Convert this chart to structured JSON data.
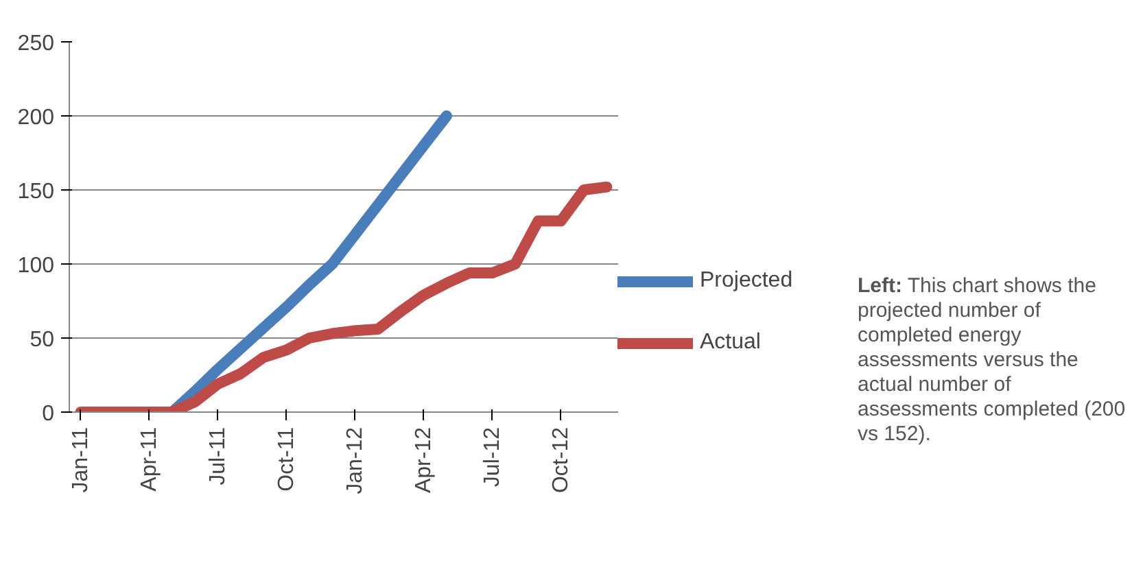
{
  "chart_data": {
    "type": "line",
    "categories": [
      "Jan-11",
      null,
      null,
      "Apr-11",
      null,
      null,
      "Jul-11",
      null,
      null,
      "Oct-11",
      null,
      null,
      "Jan-12",
      null,
      null,
      "Apr-12",
      null,
      null,
      "Jul-12",
      null,
      null,
      "Oct-12",
      null,
      null
    ],
    "series": [
      {
        "name": "Projected",
        "color": "#4a7ebb",
        "values": [
          null,
          null,
          null,
          null,
          0,
          14,
          29,
          43,
          57,
          71,
          86,
          100,
          120,
          140,
          160,
          180,
          200,
          null,
          null,
          null,
          null,
          null,
          null,
          null
        ]
      },
      {
        "name": "Actual",
        "color": "#be4b48",
        "values": [
          0,
          0,
          0,
          0,
          0,
          7,
          19,
          26,
          37,
          42,
          50,
          53,
          55,
          56,
          68,
          79,
          87,
          94,
          94,
          100,
          129,
          129,
          150,
          152
        ]
      }
    ],
    "ylim": [
      0,
      250
    ],
    "yticks": [
      0,
      50,
      100,
      150,
      200,
      250
    ],
    "grid": "y",
    "legend": "right",
    "marker": "none",
    "line_style": "solid",
    "annotations": [
      "Left: This chart shows the projected number of completed energy assessments versus the actual number of assessments completed (200 vs 152)."
    ]
  }
}
